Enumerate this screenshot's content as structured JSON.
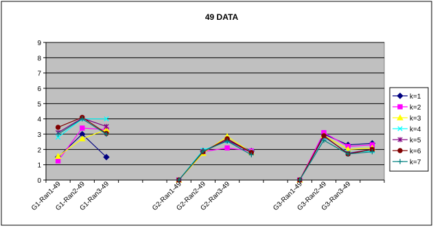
{
  "chart_data": {
    "type": "line",
    "title": "49 DATA",
    "xlabel": "",
    "ylabel": "",
    "ylim": [
      0,
      9
    ],
    "yticks": [
      "0",
      "1",
      "2",
      "3",
      "4",
      "5",
      "6",
      "7",
      "8",
      "9"
    ],
    "grid": "horizontal",
    "legend_position": "right",
    "categories": [
      "G1-Ran1-49",
      "G1-Ran2-49",
      "G1-Ran3-49",
      "",
      "",
      "G2-Ran1-49",
      "G2-Ran2-49",
      "G2-Ran3-49",
      "",
      "",
      "G3-Ran1-49",
      "G3-Ran2-49",
      "G3-Ran3-49",
      ""
    ],
    "series": [
      {
        "name": "k=1",
        "color": "#000080",
        "marker": "diamond",
        "values": [
          1.5,
          3.0,
          1.5,
          null,
          null,
          0,
          1.9,
          2.6,
          1.9,
          null,
          0,
          3.0,
          2.3,
          2.4
        ]
      },
      {
        "name": "k=2",
        "color": "#ff00ff",
        "marker": "square",
        "values": [
          1.25,
          3.4,
          3.3,
          null,
          null,
          0,
          1.85,
          2.1,
          1.9,
          null,
          0,
          3.1,
          2.2,
          2.3
        ]
      },
      {
        "name": "k=3",
        "color": "#ffff00",
        "marker": "triangle",
        "values": [
          1.55,
          2.7,
          3.3,
          null,
          null,
          0,
          1.75,
          2.85,
          1.8,
          null,
          0,
          2.9,
          2.0,
          2.1
        ]
      },
      {
        "name": "k=4",
        "color": "#00ffff",
        "marker": "x",
        "values": [
          2.8,
          4.0,
          4.0,
          null,
          null,
          0,
          1.95,
          2.55,
          1.85,
          null,
          0,
          2.8,
          1.8,
          1.9
        ]
      },
      {
        "name": "k=5",
        "color": "#800080",
        "marker": "star",
        "values": [
          3.1,
          4.05,
          3.5,
          null,
          null,
          0,
          1.85,
          2.6,
          1.8,
          null,
          0,
          2.85,
          1.75,
          2.0
        ]
      },
      {
        "name": "k=6",
        "color": "#800000",
        "marker": "circle",
        "values": [
          3.45,
          4.1,
          3.05,
          null,
          null,
          0,
          1.85,
          2.7,
          1.8,
          null,
          0,
          2.9,
          1.7,
          2.0
        ]
      },
      {
        "name": "k=7",
        "color": "#008080",
        "marker": "plus",
        "values": [
          3.0,
          4.0,
          3.0,
          null,
          null,
          0,
          1.9,
          2.55,
          1.65,
          null,
          0,
          2.6,
          1.7,
          1.85
        ]
      }
    ]
  }
}
